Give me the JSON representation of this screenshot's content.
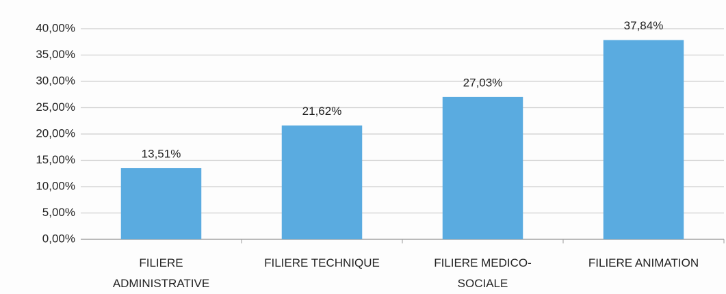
{
  "chart_data": {
    "type": "bar",
    "categories": [
      "FILIERE ADMINISTRATIVE",
      "FILIERE TECHNIQUE",
      "FILIERE MEDICO-SOCIALE",
      "FILIERE ANIMATION"
    ],
    "values": [
      13.51,
      21.62,
      27.03,
      37.84
    ],
    "value_labels": [
      "13,51%",
      "21,62%",
      "27,03%",
      "37,84%"
    ],
    "color": "#5aabe0",
    "ylim": [
      0,
      40
    ],
    "yticks": [
      {
        "value": 0,
        "label": "0,00%"
      },
      {
        "value": 5,
        "label": "5,00%"
      },
      {
        "value": 10,
        "label": "10,00%"
      },
      {
        "value": 15,
        "label": "15,00%"
      },
      {
        "value": 20,
        "label": "20,00%"
      },
      {
        "value": 25,
        "label": "25,00%"
      },
      {
        "value": 30,
        "label": "30,00%"
      },
      {
        "value": 35,
        "label": "35,00%"
      },
      {
        "value": 40,
        "label": "40,00%"
      }
    ],
    "grid": true
  }
}
